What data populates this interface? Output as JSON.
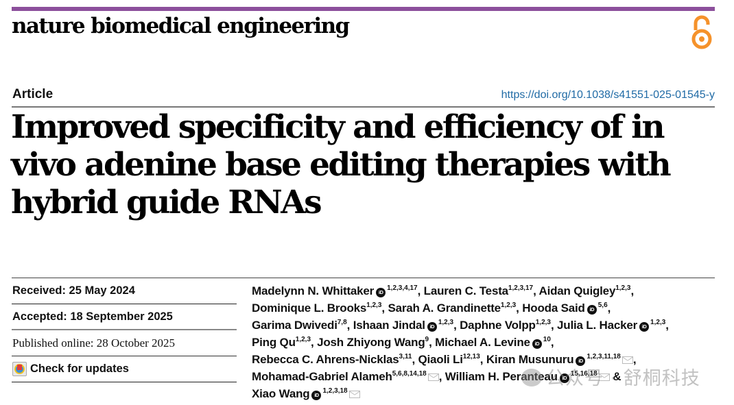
{
  "header": {
    "journal_name": "nature biomedical engineering",
    "accent_bar_color": "#8c4f9c",
    "open_access_icon": "open-lock-icon",
    "open_access_color": "#f5922b"
  },
  "article": {
    "type_label": "Article",
    "doi": "https://doi.org/10.1038/s41551-025-01545-y",
    "title": "Improved specificity and efficiency of in vivo adenine base editing therapies with hybrid guide RNAs"
  },
  "dates": {
    "received": "Received: 25 May 2024",
    "accepted": "Accepted: 18 September 2025",
    "published": "Published online: 28 October 2025",
    "check_updates": "Check for updates"
  },
  "authors": [
    {
      "name": "Madelynn N. Whittaker",
      "orcid": true,
      "aff": "1,2,3,4,17",
      "mail": false,
      "sep": ", "
    },
    {
      "name": "Lauren C. Testa",
      "orcid": false,
      "aff": "1,2,3,17",
      "mail": false,
      "sep": ", "
    },
    {
      "name": "Aidan Quigley",
      "orcid": false,
      "aff": "1,2,3",
      "mail": false,
      "sep": ", "
    },
    {
      "name": "Dominique L. Brooks",
      "orcid": false,
      "aff": "1,2,3",
      "mail": false,
      "sep": ", "
    },
    {
      "name": "Sarah A. Grandinette",
      "orcid": false,
      "aff": "1,2,3",
      "mail": false,
      "sep": ", "
    },
    {
      "name": "Hooda Said",
      "orcid": true,
      "aff": "5,6",
      "mail": false,
      "sep": ", "
    },
    {
      "name": "Garima Dwivedi",
      "orcid": false,
      "aff": "7,8",
      "mail": false,
      "sep": ", "
    },
    {
      "name": "Ishaan Jindal",
      "orcid": true,
      "aff": "1,2,3",
      "mail": false,
      "sep": ", "
    },
    {
      "name": "Daphne Volpp",
      "orcid": false,
      "aff": "1,2,3",
      "mail": false,
      "sep": ", "
    },
    {
      "name": "Julia L. Hacker",
      "orcid": true,
      "aff": "1,2,3",
      "mail": false,
      "sep": ", "
    },
    {
      "name": "Ping Qu",
      "orcid": false,
      "aff": "1,2,3",
      "mail": false,
      "sep": ", "
    },
    {
      "name": "Josh Zhiyong Wang",
      "orcid": false,
      "aff": "9",
      "mail": false,
      "sep": ", "
    },
    {
      "name": "Michael A. Levine",
      "orcid": true,
      "aff": "10",
      "mail": false,
      "sep": ", "
    },
    {
      "name": "Rebecca C. Ahrens-Nicklas",
      "orcid": false,
      "aff": "3,11",
      "mail": false,
      "sep": ", "
    },
    {
      "name": "Qiaoli Li",
      "orcid": false,
      "aff": "12,13",
      "mail": false,
      "sep": ", "
    },
    {
      "name": "Kiran Musunuru",
      "orcid": true,
      "aff": "1,2,3,11,18",
      "mail": true,
      "sep": ", "
    },
    {
      "name": "Mohamad-Gabriel Alameh",
      "orcid": false,
      "aff": "5,6,8,14,18",
      "mail": true,
      "sep": ", "
    },
    {
      "name": "William H. Peranteau",
      "orcid": true,
      "aff": "15,16,18",
      "mail": true,
      "sep": " & "
    },
    {
      "name": "Xiao Wang",
      "orcid": true,
      "aff": "1,2,3,18",
      "mail": true,
      "sep": ""
    }
  ],
  "author_lines": [
    [
      0,
      1,
      2
    ],
    [
      3,
      4,
      5
    ],
    [
      6,
      7,
      8,
      9
    ],
    [
      10,
      11,
      12
    ],
    [
      13,
      14,
      15
    ],
    [
      16,
      17
    ],
    [
      18
    ]
  ],
  "orcid_glyph": "iD",
  "watermark": "公众号 · 舒桐科技"
}
